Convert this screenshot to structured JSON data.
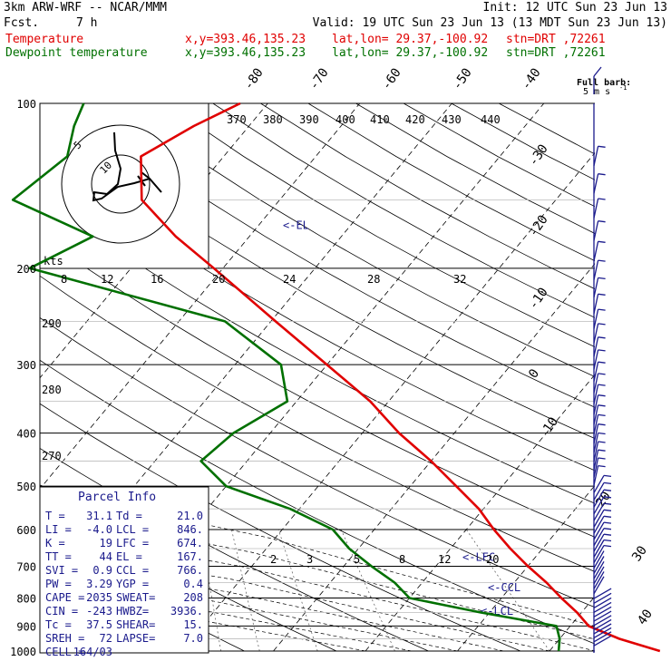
{
  "header": {
    "model": "3km ARW-WRF -- NCAR/MMM",
    "init": "Init: 12 UTC Sun 23 Jun 13",
    "fcst_label": "Fcst.",
    "fcst_value": "7 h",
    "valid": "Valid: 19 UTC Sun 23 Jun 13 (13 MDT Sun 23 Jun 13)",
    "temp_line": {
      "name": "Temperature",
      "xy": "x,y=393.46,135.23",
      "latlon": "lat,lon= 29.37,-100.92",
      "stn": "stn=DRT ,72261"
    },
    "dew_line": {
      "name": "Dewpoint temperature",
      "xy": "x,y=393.46,135.23",
      "latlon": "lat,lon= 29.37,-100.92",
      "stn": "stn=DRT ,72261"
    }
  },
  "barb_legend": {
    "title": "Full barb:",
    "value": "5 m s",
    "exp": "-1"
  },
  "parcel_info": {
    "title": "Parcel Info",
    "rows": [
      {
        "l1": "T   =",
        "v1": "31.1",
        "l2": "Td =",
        "v2": "21.0"
      },
      {
        "l1": "LI  =",
        "v1": "-4.0",
        "l2": "LCL =",
        "v2": "846."
      },
      {
        "l1": "K   =",
        "v1": "19",
        "l2": "LFC =",
        "v2": "674."
      },
      {
        "l1": "TT  =",
        "v1": "44",
        "l2": "EL  =",
        "v2": "167."
      },
      {
        "l1": "SVI =",
        "v1": "0.9",
        "l2": "CCL =",
        "v2": "766."
      },
      {
        "l1": "PW  =",
        "v1": "3.29",
        "l2": "YGP =",
        "v2": "0.4"
      },
      {
        "l1": "CAPE =",
        "v1": "2035",
        "l2": "SWEAT=",
        "v2": "208"
      },
      {
        "l1": "CIN =",
        "v1": "-243",
        "l2": "HWBZ=",
        "v2": "3936."
      },
      {
        "l1": "Tc  =",
        "v1": "37.5",
        "l2": "SHEAR=",
        "v2": "15."
      },
      {
        "l1": "SREH =",
        "v1": "72",
        "l2": "LAPSE=",
        "v2": "7.0"
      },
      {
        "l1": "CELL =",
        "v1": "164/03",
        "l2": "",
        "v2": ""
      }
    ]
  },
  "hodograph": {
    "kts_label": "kts",
    "ring_labels": [
      "5",
      "10"
    ]
  },
  "chart_data": {
    "type": "line",
    "pressure_levels": [
      100,
      200,
      300,
      400,
      500,
      600,
      700,
      800,
      900,
      1000
    ],
    "pressure_labels": [
      "100",
      "200",
      "300",
      "400",
      "500",
      "600",
      "700",
      "800",
      "900",
      "1000"
    ],
    "ylim": [
      100,
      1000
    ],
    "temp_isotherm_labels": [
      "-80",
      "-70",
      "-60",
      "-50",
      "-40",
      "-30",
      "-20",
      "-10",
      "0",
      "10",
      "20",
      "30",
      "40"
    ],
    "theta_labels": [
      "370",
      "380",
      "390",
      "400",
      "410",
      "420",
      "430",
      "440"
    ],
    "theta_low_labels": [
      "290",
      "280",
      "270"
    ],
    "mixing_ratio_labels_top": [
      "8",
      "12",
      "16",
      "20",
      "24",
      "28",
      "32"
    ],
    "mixing_ratio_labels_bottom": [
      "2",
      "3",
      "5",
      "8",
      "12",
      "20"
    ],
    "level_annotations": [
      {
        "label": "<-EL",
        "p": 167
      },
      {
        "label": "<-LFC",
        "p": 674
      },
      {
        "label": "<-CCL",
        "p": 766
      },
      {
        "label": "<-LCL",
        "p": 846
      }
    ],
    "series": [
      {
        "name": "Temperature",
        "color": "#e00000",
        "values": [
          {
            "p": 1000,
            "t": 32
          },
          {
            "p": 950,
            "t": 26.5
          },
          {
            "p": 900,
            "t": 22
          },
          {
            "p": 850,
            "t": 19.5
          },
          {
            "p": 800,
            "t": 16.5
          },
          {
            "p": 750,
            "t": 13.5
          },
          {
            "p": 700,
            "t": 10
          },
          {
            "p": 650,
            "t": 6.5
          },
          {
            "p": 600,
            "t": 3
          },
          {
            "p": 550,
            "t": -0.5
          },
          {
            "p": 500,
            "t": -5
          },
          {
            "p": 450,
            "t": -10
          },
          {
            "p": 400,
            "t": -16
          },
          {
            "p": 350,
            "t": -22
          },
          {
            "p": 300,
            "t": -30
          },
          {
            "p": 250,
            "t": -39.5
          },
          {
            "p": 200,
            "t": -51
          },
          {
            "p": 175,
            "t": -58
          },
          {
            "p": 150,
            "t": -65
          },
          {
            "p": 125,
            "t": -69
          },
          {
            "p": 110,
            "t": -66
          },
          {
            "p": 100,
            "t": -63
          }
        ]
      },
      {
        "name": "Dewpoint temperature",
        "color": "#007000",
        "values": [
          {
            "p": 1000,
            "t": 21
          },
          {
            "p": 950,
            "t": 20
          },
          {
            "p": 900,
            "t": 18.5
          },
          {
            "p": 850,
            "t": 9
          },
          {
            "p": 800,
            "t": 0
          },
          {
            "p": 750,
            "t": -3
          },
          {
            "p": 700,
            "t": -7
          },
          {
            "p": 650,
            "t": -11
          },
          {
            "p": 600,
            "t": -14.5
          },
          {
            "p": 550,
            "t": -21
          },
          {
            "p": 500,
            "t": -30
          },
          {
            "p": 450,
            "t": -35
          },
          {
            "p": 400,
            "t": -34
          },
          {
            "p": 350,
            "t": -31
          },
          {
            "p": 300,
            "t": -35
          },
          {
            "p": 250,
            "t": -45
          },
          {
            "p": 200,
            "t": -71
          },
          {
            "p": 175,
            "t": -67
          },
          {
            "p": 150,
            "t": -79
          },
          {
            "p": 125,
            "t": -77
          },
          {
            "p": 110,
            "t": -79
          },
          {
            "p": 100,
            "t": -80
          }
        ]
      }
    ]
  }
}
